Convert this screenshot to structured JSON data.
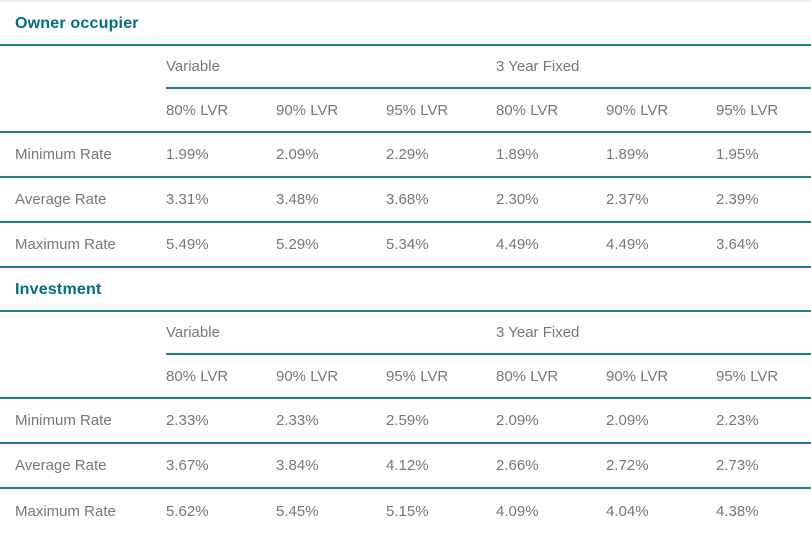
{
  "colors": {
    "accent_line": "#1f808e",
    "title_text": "#006f80",
    "body_text": "#76767e",
    "top_border": "#ededed"
  },
  "chart_data": [
    {
      "type": "table",
      "title": "Owner occupier",
      "column_groups": [
        {
          "label": "Variable",
          "span": 3
        },
        {
          "label": "3 Year Fixed",
          "span": 3
        }
      ],
      "columns": [
        "80% LVR",
        "90% LVR",
        "95% LVR",
        "80% LVR",
        "90% LVR",
        "95% LVR"
      ],
      "rows": [
        {
          "label": "Minimum Rate",
          "values": [
            "1.99%",
            "2.09%",
            "2.29%",
            "1.89%",
            "1.89%",
            "1.95%"
          ]
        },
        {
          "label": "Average Rate",
          "values": [
            "3.31%",
            "3.48%",
            "3.68%",
            "2.30%",
            "2.37%",
            "2.39%"
          ]
        },
        {
          "label": "Maximum Rate",
          "values": [
            "5.49%",
            "5.29%",
            "5.34%",
            "4.49%",
            "4.49%",
            "3.64%"
          ]
        }
      ]
    },
    {
      "type": "table",
      "title": "Investment",
      "column_groups": [
        {
          "label": "Variable",
          "span": 3
        },
        {
          "label": "3 Year Fixed",
          "span": 3
        }
      ],
      "columns": [
        "80% LVR",
        "90% LVR",
        "95% LVR",
        "80% LVR",
        "90% LVR",
        "95% LVR"
      ],
      "rows": [
        {
          "label": "Minimum Rate",
          "values": [
            "2.33%",
            "2.33%",
            "2.59%",
            "2.09%",
            "2.09%",
            "2.23%"
          ]
        },
        {
          "label": "Average Rate",
          "values": [
            "3.67%",
            "3.84%",
            "4.12%",
            "2.66%",
            "2.72%",
            "2.73%"
          ]
        },
        {
          "label": "Maximum Rate",
          "values": [
            "5.62%",
            "5.45%",
            "5.15%",
            "4.09%",
            "4.04%",
            "4.38%"
          ]
        }
      ]
    }
  ]
}
